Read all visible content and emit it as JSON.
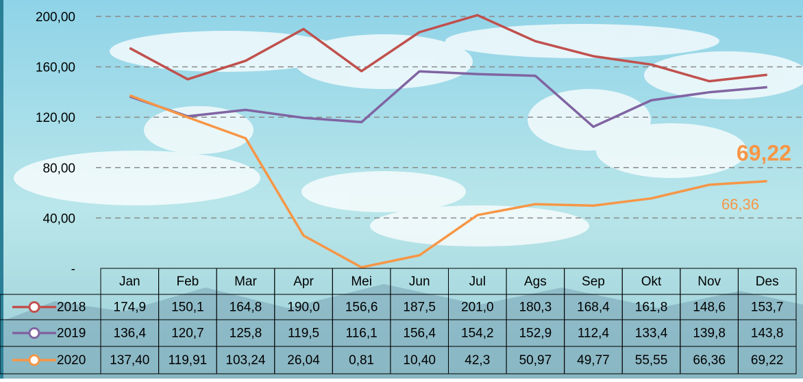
{
  "chart_data": {
    "type": "line",
    "categories": [
      "Jan",
      "Feb",
      "Mar",
      "Apr",
      "Mei",
      "Jun",
      "Jul",
      "Ags",
      "Sep",
      "Okt",
      "Nov",
      "Des"
    ],
    "series": [
      {
        "name": "2018",
        "color": "#c0504d",
        "values": [
          174.9,
          150.1,
          164.8,
          190.0,
          156.6,
          187.5,
          201.0,
          180.3,
          168.4,
          161.8,
          148.6,
          153.7
        ],
        "value_labels": [
          "174,9",
          "150,1",
          "164,8",
          "190,0",
          "156,6",
          "187,5",
          "201,0",
          "180,3",
          "168,4",
          "161,8",
          "148,6",
          "153,7"
        ]
      },
      {
        "name": "2019",
        "color": "#8064a2",
        "values": [
          136.4,
          120.7,
          125.8,
          119.5,
          116.1,
          156.4,
          154.2,
          152.9,
          112.4,
          133.4,
          139.8,
          143.8
        ],
        "value_labels": [
          "136,4",
          "120,7",
          "125,8",
          "119,5",
          "116,1",
          "156,4",
          "154,2",
          "152,9",
          "112,4",
          "133,4",
          "139,8",
          "143,8"
        ]
      },
      {
        "name": "2020",
        "color": "#f79646",
        "values": [
          137.4,
          119.91,
          103.24,
          26.04,
          0.81,
          10.4,
          42.3,
          50.97,
          49.77,
          55.55,
          66.36,
          69.22
        ],
        "value_labels": [
          "137,40",
          "119,91",
          "103,24",
          "26,04",
          "0,81",
          "10,40",
          "42,3",
          "50,97",
          "49,77",
          "55,55",
          "66,36",
          "69,22"
        ]
      }
    ],
    "ylim": [
      0,
      200
    ],
    "yticks": [
      {
        "value": 0,
        "label": "-"
      },
      {
        "value": 40,
        "label": "40,00"
      },
      {
        "value": 80,
        "label": "80,00"
      },
      {
        "value": 120,
        "label": "120,00"
      },
      {
        "value": 160,
        "label": "160,00"
      },
      {
        "value": 200,
        "label": "200,00"
      }
    ],
    "grid": true
  }
}
